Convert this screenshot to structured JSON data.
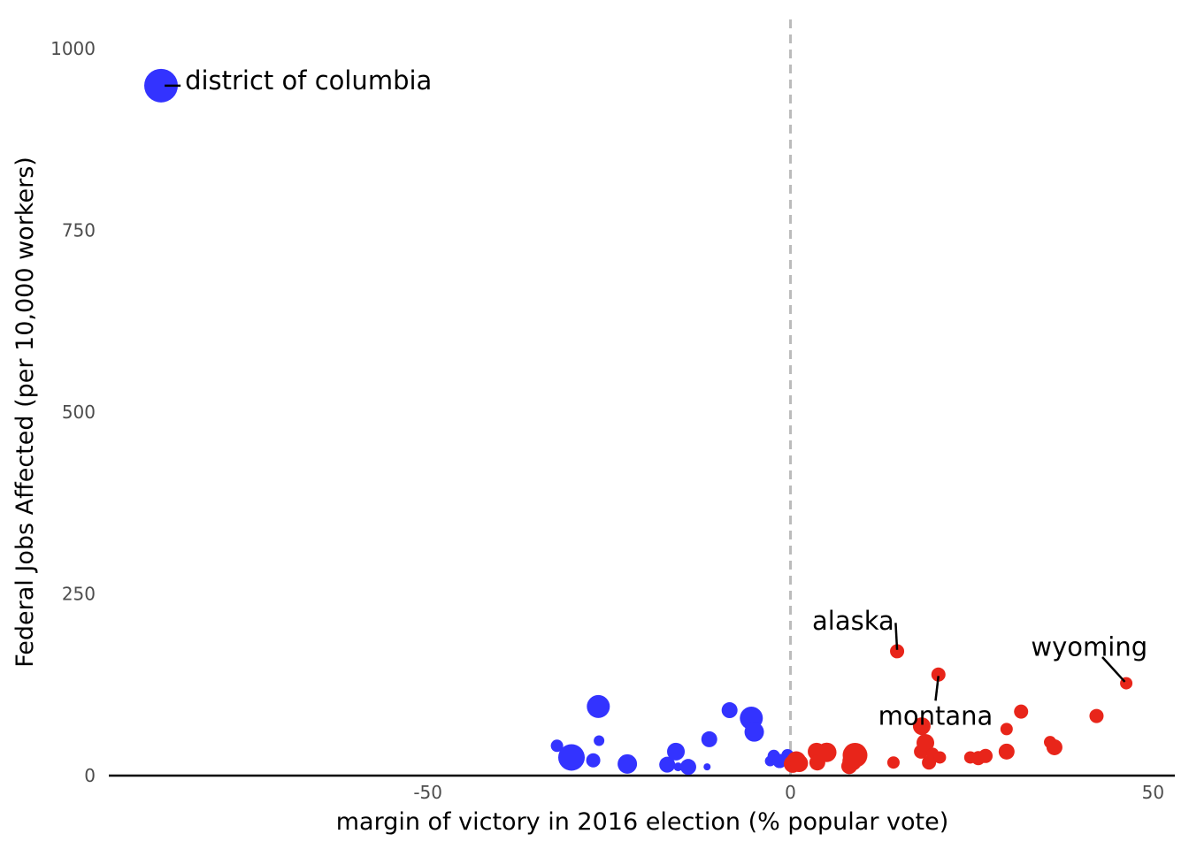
{
  "chart_data": {
    "type": "scatter",
    "title": "",
    "xlabel": "margin of victory in 2016 election (% popular vote)",
    "ylabel": "Federal Jobs Affected (per 10,000 workers)",
    "xlim": [
      -94,
      53
    ],
    "ylim": [
      0,
      1040
    ],
    "x_ticks": [
      -50,
      0,
      50
    ],
    "x_tick_labels": [
      "-50",
      "0",
      "50"
    ],
    "y_ticks": [
      0,
      250,
      500,
      750,
      1000
    ],
    "y_tick_labels": [
      "0",
      "250",
      "500",
      "750",
      "1000"
    ],
    "reference_line": {
      "x": 0,
      "style": "dashed"
    },
    "colors": {
      "blue": "#3333ff",
      "red": "#e8251a",
      "refline": "#bbbbbb",
      "axis": "#000000"
    },
    "series": [
      {
        "name": "Democratic",
        "color": "#3333ff",
        "points": [
          {
            "x": -86.8,
            "y": 949,
            "size": 19
          },
          {
            "x": -32.2,
            "y": 41,
            "size": 7
          },
          {
            "x": -30.2,
            "y": 25,
            "size": 15
          },
          {
            "x": -27.2,
            "y": 21,
            "size": 8
          },
          {
            "x": -26.5,
            "y": 95,
            "size": 13
          },
          {
            "x": -26.4,
            "y": 48,
            "size": 6
          },
          {
            "x": -22.5,
            "y": 16,
            "size": 11
          },
          {
            "x": -17.0,
            "y": 15,
            "size": 9
          },
          {
            "x": -15.8,
            "y": 33,
            "size": 10
          },
          {
            "x": -15.5,
            "y": 12,
            "size": 5
          },
          {
            "x": -14.1,
            "y": 12,
            "size": 9
          },
          {
            "x": -11.5,
            "y": 12,
            "size": 4
          },
          {
            "x": -11.2,
            "y": 50,
            "size": 9
          },
          {
            "x": -8.4,
            "y": 90,
            "size": 9
          },
          {
            "x": -5.4,
            "y": 79,
            "size": 13
          },
          {
            "x": -5.0,
            "y": 60,
            "size": 11
          },
          {
            "x": -2.8,
            "y": 20,
            "size": 6
          },
          {
            "x": -2.3,
            "y": 27,
            "size": 7
          },
          {
            "x": -1.5,
            "y": 20,
            "size": 8
          },
          {
            "x": -0.4,
            "y": 28,
            "size": 7
          },
          {
            "x": -0.2,
            "y": 18,
            "size": 7
          }
        ]
      },
      {
        "name": "Republican",
        "color": "#e8251a",
        "points": [
          {
            "x": 0.3,
            "y": 16,
            "size": 10
          },
          {
            "x": 0.8,
            "y": 20,
            "size": 11
          },
          {
            "x": 1.2,
            "y": 17,
            "size": 10
          },
          {
            "x": 3.6,
            "y": 33,
            "size": 10
          },
          {
            "x": 3.7,
            "y": 18,
            "size": 9
          },
          {
            "x": 5.0,
            "y": 32,
            "size": 11
          },
          {
            "x": 8.1,
            "y": 13,
            "size": 9
          },
          {
            "x": 8.5,
            "y": 20,
            "size": 11
          },
          {
            "x": 8.9,
            "y": 28,
            "size": 14
          },
          {
            "x": 14.2,
            "y": 18,
            "size": 7
          },
          {
            "x": 14.7,
            "y": 171,
            "size": 8
          },
          {
            "x": 18.0,
            "y": 33,
            "size": 8
          },
          {
            "x": 18.1,
            "y": 68,
            "size": 10
          },
          {
            "x": 18.6,
            "y": 45,
            "size": 10
          },
          {
            "x": 19.1,
            "y": 18,
            "size": 8
          },
          {
            "x": 19.6,
            "y": 30,
            "size": 7
          },
          {
            "x": 20.4,
            "y": 139,
            "size": 8
          },
          {
            "x": 20.6,
            "y": 25,
            "size": 7
          },
          {
            "x": 24.8,
            "y": 25,
            "size": 7
          },
          {
            "x": 25.9,
            "y": 24,
            "size": 8
          },
          {
            "x": 26.9,
            "y": 27,
            "size": 8
          },
          {
            "x": 29.8,
            "y": 33,
            "size": 9
          },
          {
            "x": 29.8,
            "y": 64,
            "size": 7
          },
          {
            "x": 31.8,
            "y": 88,
            "size": 8
          },
          {
            "x": 35.8,
            "y": 46,
            "size": 7
          },
          {
            "x": 36.4,
            "y": 39,
            "size": 9
          },
          {
            "x": 42.2,
            "y": 82,
            "size": 8
          },
          {
            "x": 46.3,
            "y": 127,
            "size": 7
          }
        ]
      }
    ],
    "annotations": [
      {
        "label": "district of columbia",
        "point_x": -86.8,
        "point_y": 949,
        "anchor": "start",
        "tx": -83.5,
        "ty": 944,
        "lx1": -86.3,
        "ly1": 949,
        "lx2": -84.1,
        "ly2": 949
      },
      {
        "label": "alaska",
        "point_x": 14.7,
        "point_y": 171,
        "anchor": "end",
        "tx": 14.3,
        "ty": 201,
        "lx1": 14.5,
        "ly1": 210,
        "lx2": 14.7,
        "ly2": 173
      },
      {
        "label": "montana",
        "point_x": 20.4,
        "point_y": 139,
        "anchor": "middle",
        "tx": 20.0,
        "ty": 70,
        "lx1": 20.0,
        "ly1": 103,
        "lx2": 20.4,
        "ly2": 137
      },
      {
        "label": "wyoming",
        "point_x": 46.3,
        "point_y": 127,
        "anchor": "middle",
        "tx": 41.2,
        "ty": 165,
        "lx1": 43.0,
        "ly1": 163,
        "lx2": 46.1,
        "ly2": 129
      }
    ]
  }
}
